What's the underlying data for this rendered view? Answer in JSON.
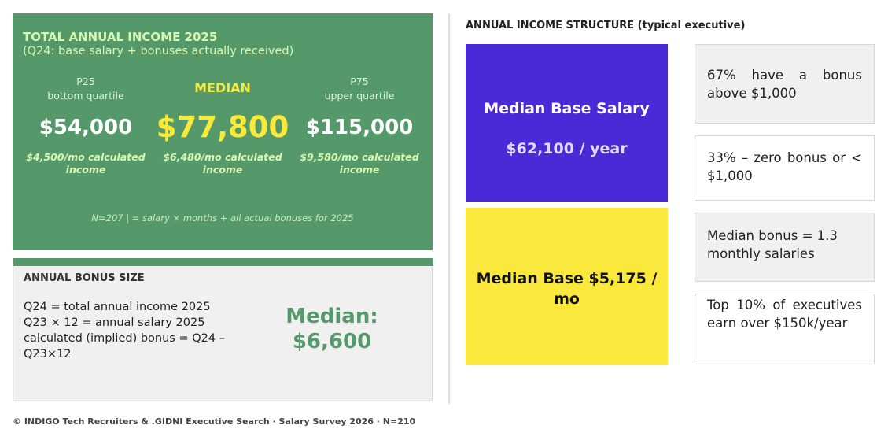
{
  "income": {
    "title": "TOTAL ANNUAL INCOME 2025",
    "subtitle": "(Q24: base salary + bonuses actually received)",
    "quartiles": [
      {
        "label_line1": "P25",
        "label_line2": "bottom quartile",
        "value": "$54,000",
        "monthly": "$4,500/mo calculated income"
      },
      {
        "label": "MEDIAN",
        "value": "$77,800",
        "monthly": "$6,480/mo calculated income"
      },
      {
        "label_line1": "P75",
        "label_line2": "upper quartile",
        "value": "$115,000",
        "monthly": "$9,580/mo calculated income"
      }
    ],
    "note": "N=207 | = salary × months + all actual bonuses for 2025"
  },
  "bonus": {
    "title": "ANNUAL BONUS SIZE",
    "lines": [
      "Q24 = total annual income 2025",
      "Q23 × 12 = annual salary 2025",
      "calculated (implied) bonus = Q24 – Q23×12"
    ],
    "median_label": "Median:",
    "median_value": "$6,600"
  },
  "structure": {
    "title": "ANNUAL INCOME STRUCTURE (typical executive)",
    "base_salary_label": "Median Base Salary",
    "base_salary_value": "$62,100 / year",
    "base_monthly_label": "Median Base $5,175 / mo",
    "facts": [
      "67% have a bonus above $1,000",
      "33% – zero bonus or < $1,000",
      "Median bonus = 1.3 monthly salaries",
      "Top 10% of executives earn over $150k/year"
    ]
  },
  "colors": {
    "green": "#55996b",
    "purple": "#4a2ad6",
    "yellow": "#fbe83c",
    "median_yellow": "#f7ea3a"
  },
  "footer": "© INDIGO Tech Recruiters & .GIDNI Executive Search · Salary Survey 2026 · N=210"
}
